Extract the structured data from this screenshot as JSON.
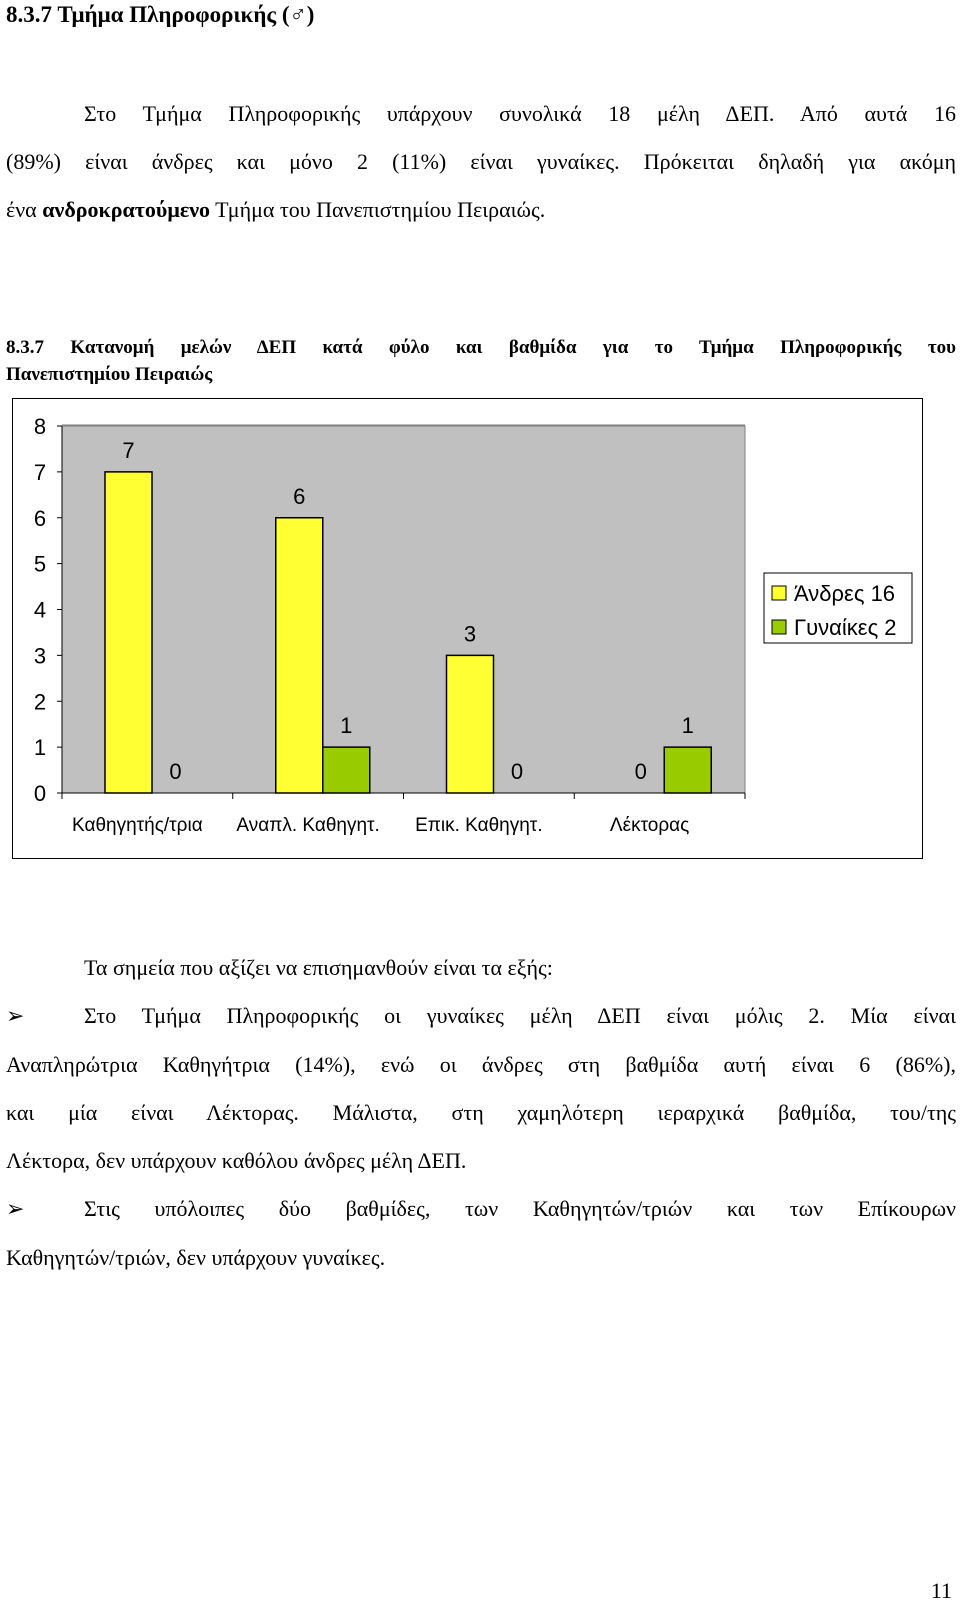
{
  "heading": "8.3.7 Τμήμα Πληροφορικής (♂)",
  "intro": {
    "line1": "Στο Τμήμα Πληροφορικής υπάρχουν συνολικά 18 μέλη ΔΕΠ. Από αυτά 16",
    "line2": "(89%) είναι άνδρες και μόνο 2 (11%) είναι γυναίκες. Πρόκειται δηλαδή για ακόμη",
    "line3_prefix": "ένα ",
    "line3_bold": "ανδροκρατούμενο",
    "line3_suffix": " Τμήμα του Πανεπιστημίου Πειραιώς."
  },
  "caption": {
    "line1": "8.3.7 Κατανομή μελών ΔΕΠ κατά φύλο και βαθμίδα για το Τμήμα Πληροφορικής του",
    "line2": "Πανεπιστημίου Πειραιώς"
  },
  "chart_data": {
    "type": "bar",
    "categories": [
      "Καθηγητής/τρια",
      "Αναπλ. Καθηγητ.",
      "Επικ. Καθηγητ.",
      "Λέκτορας"
    ],
    "series": [
      {
        "name": "Άνδρες 16",
        "values": [
          7,
          6,
          3,
          0
        ],
        "color": "#ffff33"
      },
      {
        "name": "Γυναίκες 2",
        "values": [
          0,
          1,
          0,
          1
        ],
        "color": "#99cc00"
      }
    ],
    "ylim": [
      0,
      8
    ],
    "yticks": [
      "0",
      "1",
      "2",
      "3",
      "4",
      "5",
      "6",
      "7",
      "8"
    ],
    "plot_background": "#c0c0c0",
    "legend_position": "right"
  },
  "points": {
    "intro": "Τα σημεία που αξίζει να επισημανθούν είναι τα εξής:",
    "b1_line1": "Στο Τμήμα Πληροφορικής οι γυναίκες μέλη ΔΕΠ είναι μόλις 2. Μία είναι",
    "b1_line2": "Αναπληρώτρια Καθηγήτρια (14%), ενώ οι άνδρες στη βαθμίδα αυτή είναι 6 (86%),",
    "b1_line3": "και μία είναι Λέκτορας. Μάλιστα, στη χαμηλότερη ιεραρχικά βαθμίδα, του/της",
    "b1_line4": "Λέκτορα, δεν υπάρχουν καθόλου άνδρες μέλη ΔΕΠ.",
    "b2_line1": "Στις υπόλοιπες δύο βαθμίδες, των Καθηγητών/τριών και των Επίκουρων",
    "b2_line2": "Καθηγητών/τριών, δεν υπάρχουν γυναίκες.",
    "bullet_icon": "arrowhead-bullet-icon"
  },
  "page_number": "11"
}
